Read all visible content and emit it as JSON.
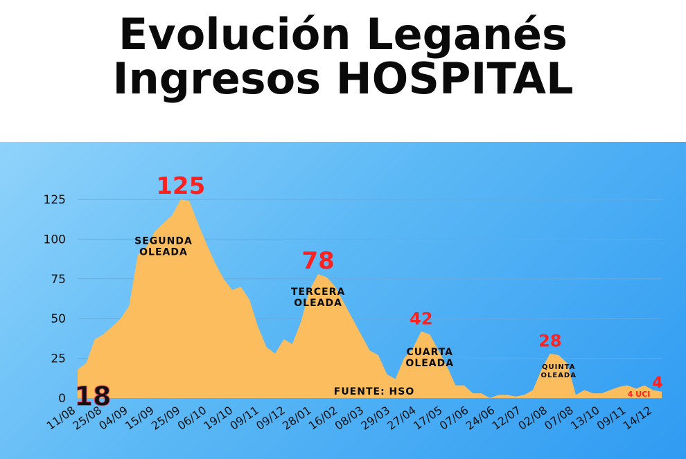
{
  "title": {
    "line1": "Evolución Leganés",
    "line2": "Ingresos HOSPITAL"
  },
  "source_label": "FUENTE: HSO",
  "uci_label": "4 UCI",
  "colors": {
    "area": "#fbbd5e",
    "peak_label": "#ff2020",
    "start_label": "#111111",
    "panel_gradient": [
      "#8fd3fb",
      "#2f9bf2"
    ]
  },
  "chart_data": {
    "type": "area",
    "title": "",
    "xlabel": "",
    "ylabel": "",
    "ylim": [
      0,
      135
    ],
    "yticks": [
      0,
      25,
      50,
      75,
      100,
      125
    ],
    "grid": true,
    "x_tick_labels": [
      "11/08",
      "25/08",
      "04/09",
      "15/09",
      "25/09",
      "06/10",
      "19/10",
      "09/11",
      "09/12",
      "28/01",
      "16/02",
      "08/03",
      "29/03",
      "27/04",
      "17/05",
      "07/06",
      "24/06",
      "12/07",
      "02/08",
      "07/08",
      "13/10",
      "09/11",
      "14/12"
    ],
    "values": [
      18,
      22,
      37,
      40,
      45,
      50,
      58,
      90,
      95,
      105,
      110,
      115,
      125,
      124,
      110,
      97,
      85,
      75,
      68,
      70,
      62,
      45,
      32,
      28,
      37,
      34,
      48,
      68,
      78,
      76,
      70,
      60,
      50,
      40,
      30,
      27,
      15,
      12,
      25,
      31,
      42,
      40,
      30,
      20,
      8,
      8,
      3,
      3,
      0,
      2,
      2,
      1,
      2,
      5,
      18,
      28,
      27,
      22,
      2,
      5,
      3,
      3,
      5,
      7,
      8,
      6,
      8,
      5,
      4
    ],
    "annotations": [
      {
        "value": "125",
        "kind": "peak",
        "x_index": 12
      },
      {
        "value": "78",
        "kind": "peak",
        "x_index": 28
      },
      {
        "value": "42",
        "kind": "peak",
        "x_index": 40
      },
      {
        "value": "28",
        "kind": "peak",
        "x_index": 55
      },
      {
        "value": "4",
        "kind": "peak",
        "x_index": 68
      },
      {
        "value": "18",
        "kind": "start",
        "x_index": 0
      }
    ],
    "waves": [
      {
        "line1": "SEGUNDA",
        "line2": "OLEADA",
        "x_index": 10
      },
      {
        "line1": "TERCERA",
        "line2": "OLEADA",
        "x_index": 28
      },
      {
        "line1": "CUARTA",
        "line2": "OLEADA",
        "x_index": 41
      },
      {
        "line1": "QUINTA",
        "line2": "OLEADA",
        "x_index": 56
      }
    ]
  }
}
